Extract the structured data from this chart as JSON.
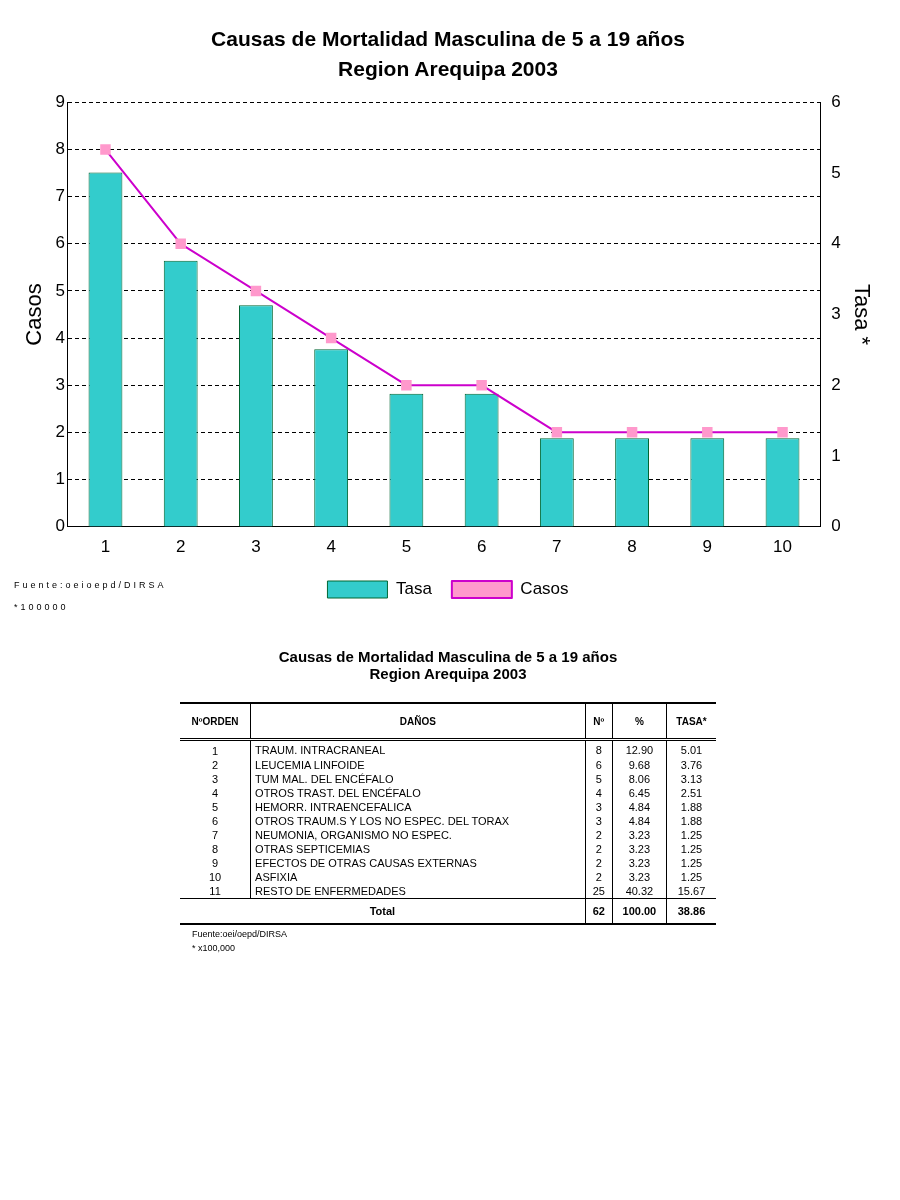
{
  "chart_data": [
    {
      "type": "bar",
      "title": "Causas de Mortalidad Masculina de 5 a 19 años",
      "subtitle": "Region Arequipa 2003",
      "categories": [
        "1",
        "2",
        "3",
        "4",
        "5",
        "6",
        "7",
        "8",
        "9",
        "10"
      ],
      "series": [
        {
          "name": "Tasa",
          "type": "bar",
          "axis": "y2",
          "color": "#33cccc",
          "values": [
            5.01,
            3.76,
            3.13,
            2.51,
            1.88,
            1.88,
            1.25,
            1.25,
            1.25,
            1.25
          ]
        },
        {
          "name": "Casos",
          "type": "line",
          "axis": "y",
          "color": "#cc00cc",
          "values": [
            8,
            6,
            5,
            4,
            3,
            3,
            2,
            2,
            2,
            2
          ]
        }
      ],
      "ylabel": "Casos",
      "y2label": "Tasa *",
      "ylim": [
        0,
        9
      ],
      "yticks": [
        0,
        1,
        2,
        3,
        4,
        5,
        6,
        7,
        8,
        9
      ],
      "y2lim": [
        0,
        6
      ],
      "y2ticks": [
        0,
        1,
        2,
        3,
        4,
        5,
        6
      ],
      "grid": "y",
      "legend": "bottom",
      "marker": "square",
      "line_style": "solid",
      "annotations": [
        "Fuente:oeioepd/DIRSA",
        "*100000"
      ]
    },
    {
      "type": "other",
      "title": "Causas de Mortalidad Masculina de 5 a 19 años",
      "subtitle": "Region Arequipa 2003",
      "categories": [
        "TRAUM. INTRACRANEAL",
        "LEUCEMIA LINFOIDE",
        "TUM MAL. DEL ENCÉFALO",
        "OTROS TRAST. DEL ENCÉFALO",
        "HEMORR. INTRAENCEFALICA",
        "OTROS TRAUM.S Y LOS NO ESPEC. DEL TORAX",
        "NEUMONIA, ORGANISMO NO ESPEC.",
        "OTRAS SEPTICEMIAS",
        "EFECTOS DE OTRAS CAUSAS EXTERNAS",
        "ASFIXIA",
        "RESTO DE ENFERMEDADES"
      ],
      "series": [
        {
          "name": "NºORDEN",
          "values": [
            1,
            2,
            3,
            4,
            5,
            6,
            7,
            8,
            9,
            10,
            11
          ],
          "value_labels": [
            "1",
            "2",
            "3",
            "4",
            "5",
            "6",
            "7",
            "8",
            "9",
            "10",
            "11"
          ]
        },
        {
          "name": "Nº",
          "values": [
            8,
            6,
            5,
            4,
            3,
            3,
            2,
            2,
            2,
            2,
            25
          ],
          "value_labels": [
            "8",
            "6",
            "5",
            "4",
            "3",
            "3",
            "2",
            "2",
            "2",
            "2",
            "25"
          ]
        },
        {
          "name": "%",
          "values": [
            12.9,
            9.68,
            8.06,
            6.45,
            4.84,
            4.84,
            3.23,
            3.23,
            3.23,
            3.23,
            40.32
          ],
          "value_labels": [
            "12.90",
            "9.68",
            "8.06",
            "6.45",
            "4.84",
            "4.84",
            "3.23",
            "3.23",
            "3.23",
            "3.23",
            "40.32"
          ]
        },
        {
          "name": "TASA*",
          "values": [
            5.01,
            3.76,
            3.13,
            2.51,
            1.88,
            1.88,
            1.25,
            1.25,
            1.25,
            1.25,
            15.67
          ],
          "value_labels": [
            "5.01",
            "3.76",
            "3.13",
            "2.51",
            "1.88",
            "1.88",
            "1.25",
            "1.25",
            "1.25",
            "1.25",
            "15.67"
          ]
        }
      ],
      "ylabel": "DAÑOS",
      "totals": [
        "62",
        "100.00",
        "38.86"
      ],
      "annotations": [
        "Total",
        "Fuente:oei/oepd/DIRSA",
        "* x100,000"
      ]
    }
  ]
}
